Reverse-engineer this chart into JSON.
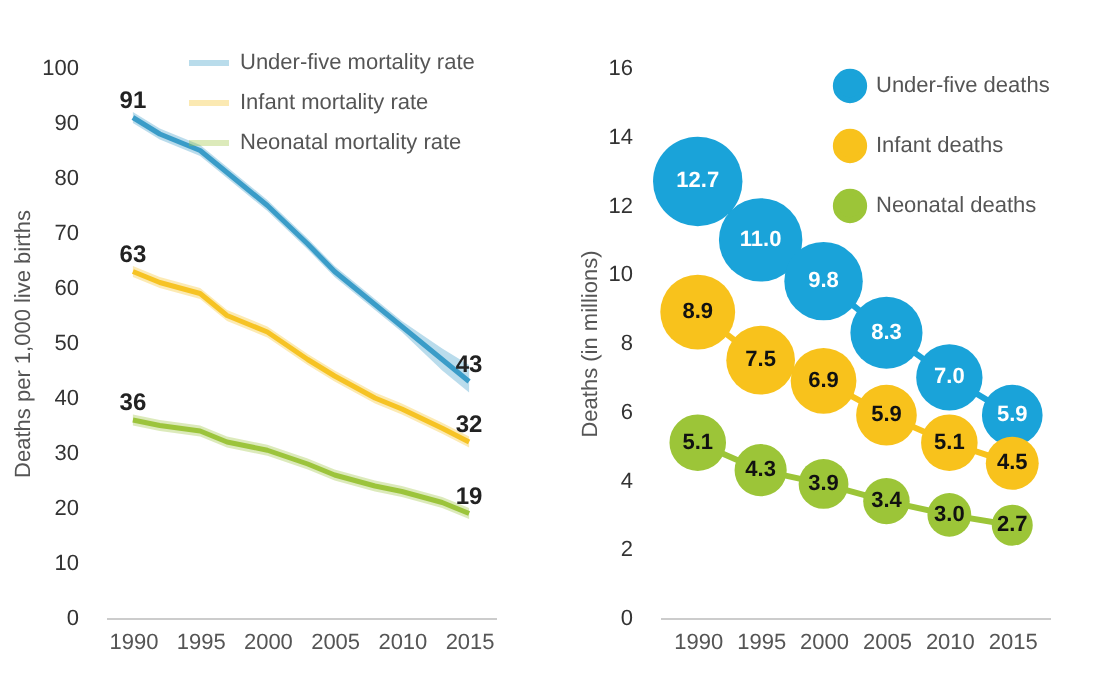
{
  "chart_data": [
    {
      "type": "line",
      "ylabel": "Deaths per 1,000 live births",
      "xlim": [
        1988,
        2017
      ],
      "xticks": [
        1990,
        1995,
        2000,
        2005,
        2010,
        2015
      ],
      "ylim": [
        0,
        100
      ],
      "yticks": [
        0,
        10,
        20,
        30,
        40,
        50,
        60,
        70,
        80,
        90,
        100
      ],
      "grid": false,
      "legend": "top right",
      "line_style": "solid",
      "marker": "none",
      "x": [
        1990,
        1992,
        1995,
        1997,
        2000,
        2003,
        2005,
        2008,
        2010,
        2013,
        2015
      ],
      "series": [
        {
          "name": "Under-five mortality rate",
          "color": "#3a9cc8",
          "values": [
            91,
            88,
            85,
            81,
            75,
            68,
            63,
            57,
            53,
            47,
            43
          ],
          "lower": [
            90,
            87,
            84,
            80,
            74,
            67,
            62,
            56,
            52,
            45,
            41
          ],
          "upper": [
            92,
            89,
            86,
            82,
            76,
            69,
            64,
            58,
            54,
            49,
            46
          ],
          "value_labels": [
            "91",
            null,
            null,
            null,
            null,
            null,
            null,
            null,
            null,
            null,
            "43"
          ]
        },
        {
          "name": "Infant mortality rate",
          "color": "#f6c324",
          "values": [
            63,
            61,
            59,
            55,
            52,
            47,
            44,
            40,
            38,
            34.5,
            32
          ],
          "lower": [
            62,
            60,
            58,
            54,
            51,
            46,
            43,
            39,
            37,
            33.5,
            31
          ],
          "upper": [
            64,
            62,
            60,
            56,
            53,
            48,
            45,
            41,
            39,
            35.5,
            33
          ],
          "value_labels": [
            "63",
            null,
            null,
            null,
            null,
            null,
            null,
            null,
            null,
            null,
            "32"
          ]
        },
        {
          "name": "Neonatal mortality rate",
          "color": "#9cc43c",
          "values": [
            36,
            35,
            34,
            32,
            30.5,
            28,
            26,
            24,
            23,
            21,
            19
          ],
          "lower": [
            35,
            34,
            33,
            31,
            29.5,
            27,
            25,
            23,
            22,
            20,
            18
          ],
          "upper": [
            37,
            36,
            35,
            33,
            31.5,
            29,
            27,
            25,
            24,
            22,
            20
          ],
          "value_labels": [
            "36",
            null,
            null,
            null,
            null,
            null,
            null,
            null,
            null,
            null,
            "19"
          ]
        }
      ]
    },
    {
      "type": "bubble",
      "ylabel": "Deaths (in millions)",
      "xlim": [
        1987,
        2018
      ],
      "xticks": [
        1990,
        1995,
        2000,
        2005,
        2010,
        2015
      ],
      "ylim": [
        0,
        16
      ],
      "yticks": [
        0,
        2,
        4,
        6,
        8,
        10,
        12,
        14,
        16
      ],
      "grid": false,
      "legend": "top right",
      "line_style": "solid",
      "x": [
        1990,
        1995,
        2000,
        2005,
        2010,
        2015
      ],
      "series": [
        {
          "name": "Under-five deaths",
          "color": "#1aa3d9",
          "values": [
            12.7,
            11.0,
            9.8,
            8.3,
            7.0,
            5.9
          ],
          "sizes": [
            1,
            0.87,
            0.77,
            0.65,
            0.55,
            0.46
          ],
          "value_labels": [
            "12.7",
            "11.0",
            "9.8",
            "8.3",
            "7.0",
            "5.9"
          ]
        },
        {
          "name": "Infant deaths",
          "color": "#f8c21c",
          "values": [
            8.9,
            7.5,
            6.9,
            5.9,
            5.1,
            4.5
          ],
          "sizes": [
            0.7,
            0.59,
            0.54,
            0.46,
            0.4,
            0.35
          ],
          "value_labels": [
            "8.9",
            "7.5",
            "6.9",
            "5.9",
            "5.1",
            "4.5"
          ]
        },
        {
          "name": "Neonatal deaths",
          "color": "#9cc538",
          "values": [
            5.1,
            4.3,
            3.9,
            3.4,
            3.0,
            2.7
          ],
          "sizes": [
            0.4,
            0.34,
            0.31,
            0.27,
            0.24,
            0.21
          ],
          "value_labels": [
            "5.1",
            "4.3",
            "3.9",
            "3.4",
            "3.0",
            "2.7"
          ]
        }
      ]
    }
  ]
}
